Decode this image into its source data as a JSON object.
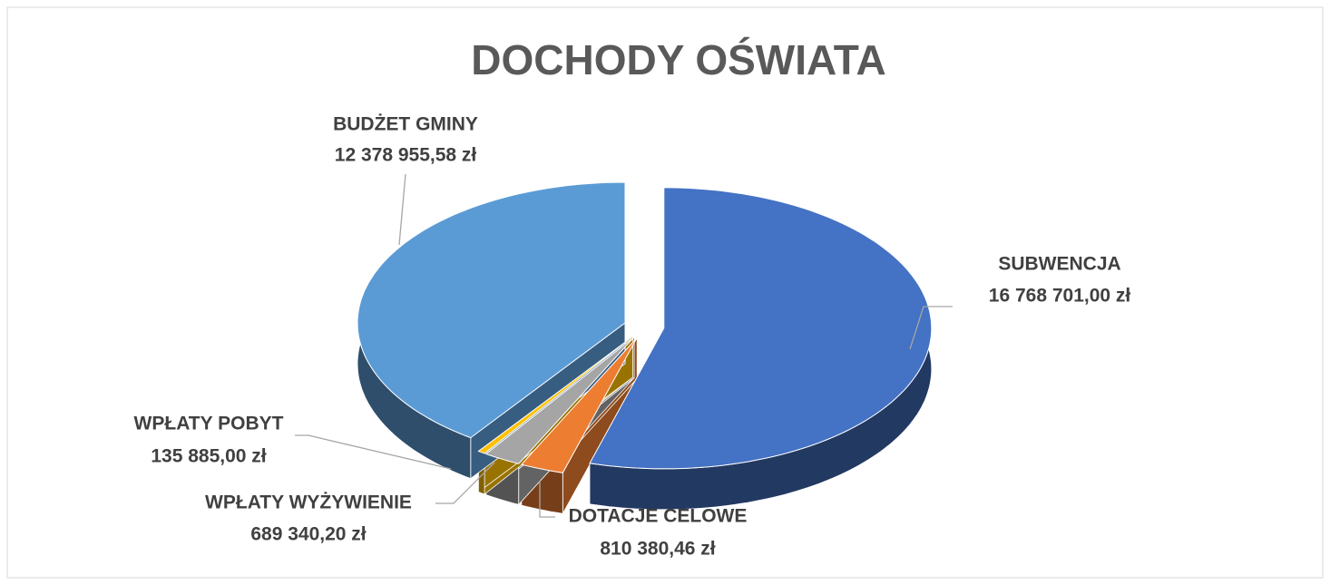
{
  "chart_data": {
    "type": "pie3d",
    "title": "DOCHODY OŚWIATA",
    "categories": [
      "SUBWENCJA",
      "DOTACJE CELOWE",
      "WPŁATY WYŻYWIENIE",
      "WPŁATY POBYT",
      "BUDŻET GMINY"
    ],
    "values": [
      16768701.0,
      810380.46,
      689340.2,
      135885.0,
      12378955.58
    ],
    "value_labels": [
      "16 768 701,00 zł",
      "810 380,46 zł",
      "689 340,20 zł",
      "135 885,00 zł",
      "12 378 955,58 zł"
    ],
    "colors": [
      "#4472c4",
      "#ed7d31",
      "#a5a5a5",
      "#ffc000",
      "#5b9bd5"
    ]
  }
}
